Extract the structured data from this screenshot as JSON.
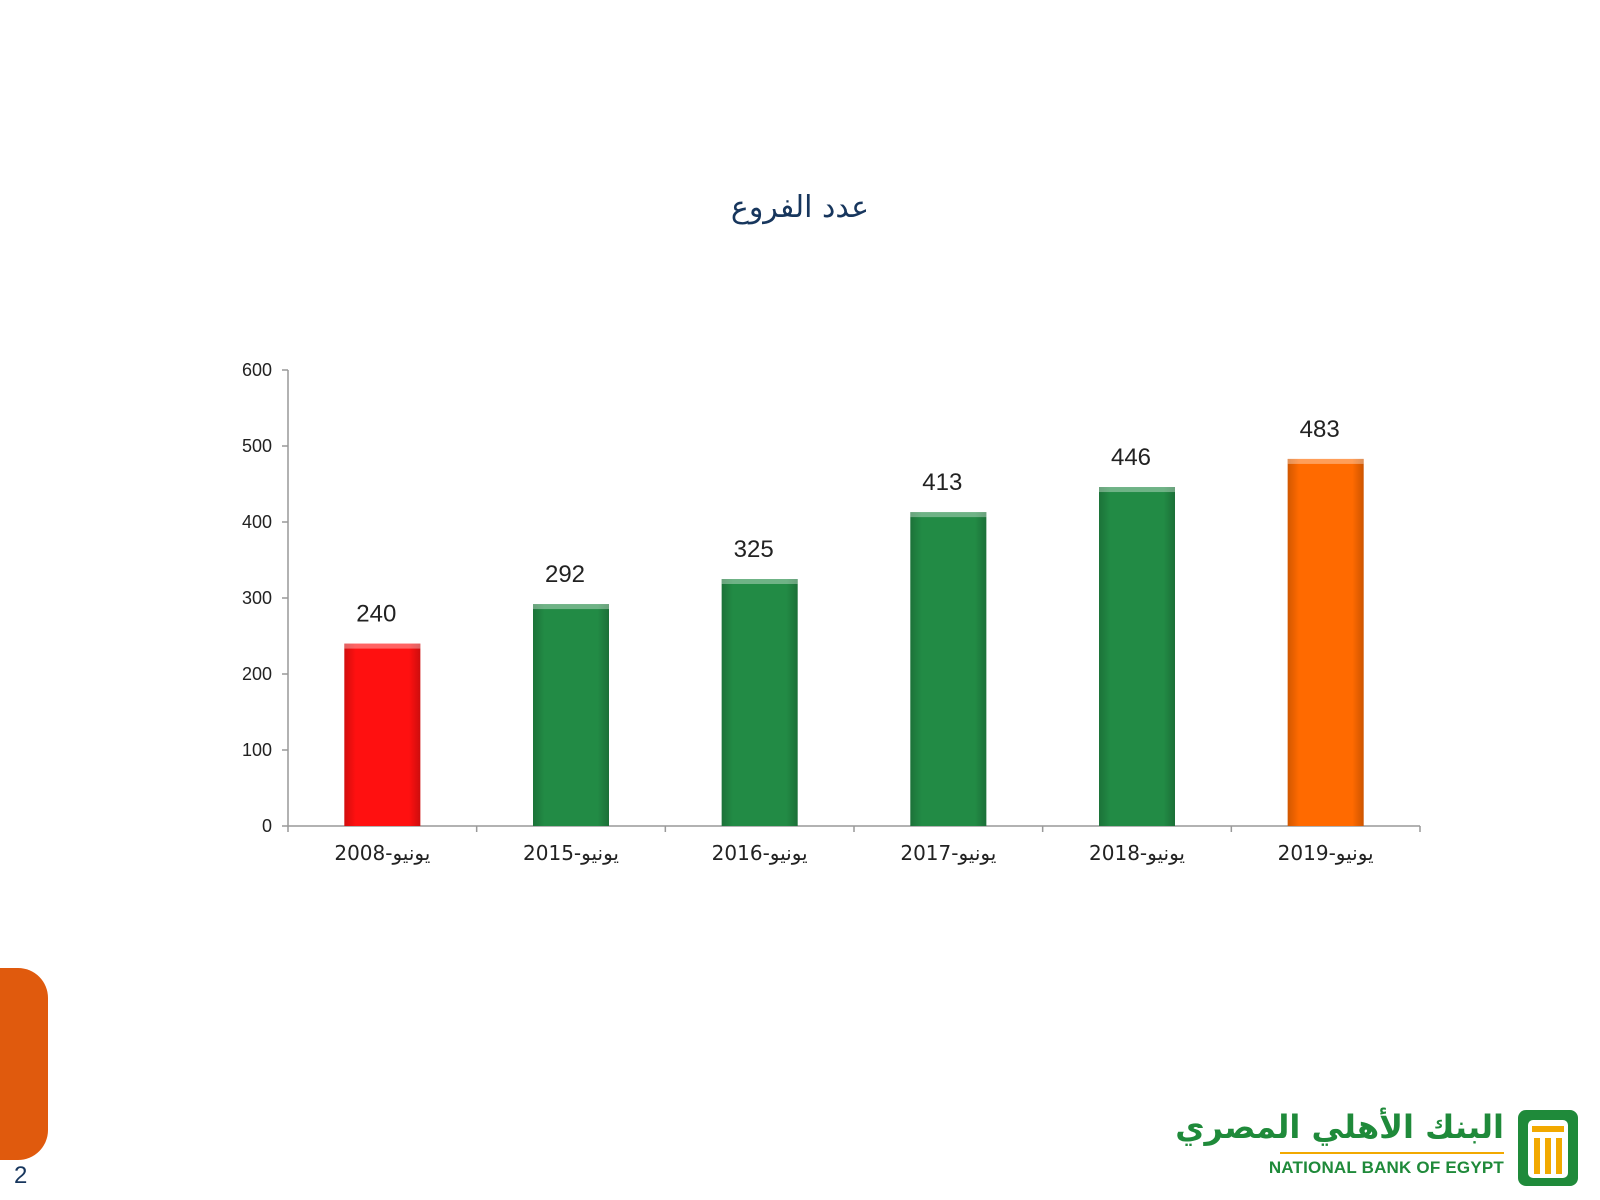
{
  "slide": {
    "page_number": "2"
  },
  "logo": {
    "arabic_name": "البنك الأهلي المصري",
    "english_name": "NATIONAL BANK OF EGYPT"
  },
  "colors": {
    "title": "#17365d",
    "bar_default": "#228b45",
    "bar_first": "#ff1010",
    "bar_last": "#ff6a00",
    "axis": "#999999",
    "side_tab": "#e05a0d",
    "logo_green": "#1f8a3a",
    "logo_gold": "#f2a900"
  },
  "chart_data": {
    "type": "bar",
    "title": "عدد الفروع",
    "categories": [
      "يونيو-2008",
      "يونيو-2015",
      "يونيو-2016",
      "يونيو-2017",
      "يونيو-2018",
      "يونيو-2019"
    ],
    "series": [
      {
        "values": [
          240,
          292,
          325,
          413,
          446,
          483
        ],
        "bar_colors": [
          "#ff1010",
          "#228b45",
          "#228b45",
          "#228b45",
          "#228b45",
          "#ff6a00"
        ]
      }
    ],
    "data_labels": [
      "240",
      "292",
      "325",
      "413",
      "446",
      "483"
    ],
    "y_ticks": [
      "0",
      "100",
      "200",
      "300",
      "400",
      "500",
      "600"
    ],
    "ylim": [
      0,
      600
    ],
    "xlabel": "",
    "ylabel": "",
    "grid": false,
    "legend": "none"
  }
}
